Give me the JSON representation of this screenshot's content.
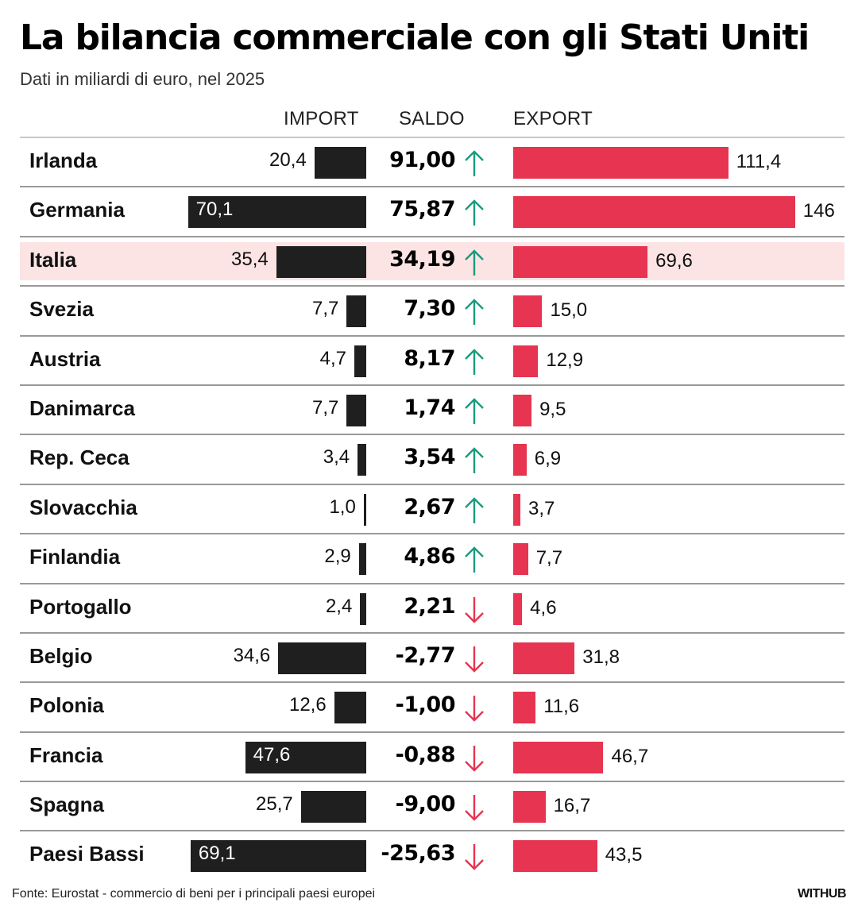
{
  "header": {
    "title": "La bilancia commerciale con gli Stati Uniti",
    "subtitle": "Dati in miliardi di euro, nel 2025"
  },
  "columns": {
    "import": "IMPORT",
    "saldo": "SALDO",
    "export": "EXPORT"
  },
  "colors": {
    "import_bar": "#1f1f1f",
    "export_bar": "#e63451",
    "up_arrow": "#1a9a80",
    "down_arrow": "#e63451",
    "highlight": "#fce4e4"
  },
  "footer": {
    "source": "Fonte: Eurostat - commercio di beni per i principali paesi europei",
    "brand": "WITHUB"
  },
  "chart_data": {
    "type": "table",
    "title": "La bilancia commerciale con gli Stati Uniti",
    "subtitle": "Dati in miliardi di euro, nel 2025",
    "units": "miliardi di euro",
    "highlighted": "Italia",
    "rows": [
      {
        "country": "Irlanda",
        "import": 20.4,
        "import_label": "20,4",
        "saldo": 91.0,
        "saldo_label": "91,00",
        "trend": "up",
        "export": 111.4,
        "export_label": "111,4"
      },
      {
        "country": "Germania",
        "import": 70.1,
        "import_label": "70,1",
        "saldo": 75.87,
        "saldo_label": "75,87",
        "trend": "up",
        "export": 146,
        "export_label": "146"
      },
      {
        "country": "Italia",
        "import": 35.4,
        "import_label": "35,4",
        "saldo": 34.19,
        "saldo_label": "34,19",
        "trend": "up",
        "export": 69.6,
        "export_label": "69,6"
      },
      {
        "country": "Svezia",
        "import": 7.7,
        "import_label": "7,7",
        "saldo": 7.3,
        "saldo_label": "7,30",
        "trend": "up",
        "export": 15.0,
        "export_label": "15,0"
      },
      {
        "country": "Austria",
        "import": 4.7,
        "import_label": "4,7",
        "saldo": 8.17,
        "saldo_label": "8,17",
        "trend": "up",
        "export": 12.9,
        "export_label": "12,9"
      },
      {
        "country": "Danimarca",
        "import": 7.7,
        "import_label": "7,7",
        "saldo": 1.74,
        "saldo_label": "1,74",
        "trend": "up",
        "export": 9.5,
        "export_label": "9,5"
      },
      {
        "country": "Rep. Ceca",
        "import": 3.4,
        "import_label": "3,4",
        "saldo": 3.54,
        "saldo_label": "3,54",
        "trend": "up",
        "export": 6.9,
        "export_label": "6,9"
      },
      {
        "country": "Slovacchia",
        "import": 1.0,
        "import_label": "1,0",
        "saldo": 2.67,
        "saldo_label": "2,67",
        "trend": "up",
        "export": 3.7,
        "export_label": "3,7"
      },
      {
        "country": "Finlandia",
        "import": 2.9,
        "import_label": "2,9",
        "saldo": 4.86,
        "saldo_label": "4,86",
        "trend": "up",
        "export": 7.7,
        "export_label": "7,7"
      },
      {
        "country": "Portogallo",
        "import": 2.4,
        "import_label": "2,4",
        "saldo": 2.21,
        "saldo_label": "2,21",
        "trend": "down",
        "export": 4.6,
        "export_label": "4,6"
      },
      {
        "country": "Belgio",
        "import": 34.6,
        "import_label": "34,6",
        "saldo": -2.77,
        "saldo_label": "-2,77",
        "trend": "down",
        "export": 31.8,
        "export_label": "31,8"
      },
      {
        "country": "Polonia",
        "import": 12.6,
        "import_label": "12,6",
        "saldo": -1.0,
        "saldo_label": "-1,00",
        "trend": "down",
        "export": 11.6,
        "export_label": "11,6"
      },
      {
        "country": "Francia",
        "import": 47.6,
        "import_label": "47,6",
        "saldo": -0.88,
        "saldo_label": "-0,88",
        "trend": "down",
        "export": 46.7,
        "export_label": "46,7"
      },
      {
        "country": "Spagna",
        "import": 25.7,
        "import_label": "25,7",
        "saldo": -9.0,
        "saldo_label": "-9,00",
        "trend": "down",
        "export": 16.7,
        "export_label": "16,7"
      },
      {
        "country": "Paesi Bassi",
        "import": 69.1,
        "import_label": "69,1",
        "saldo": -25.63,
        "saldo_label": "-25,63",
        "trend": "down",
        "export": 43.5,
        "export_label": "43,5"
      }
    ]
  }
}
